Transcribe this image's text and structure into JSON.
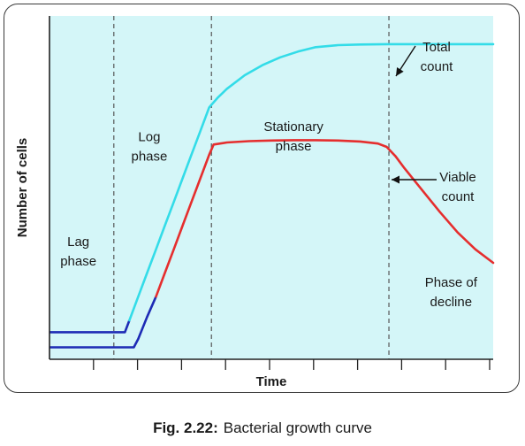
{
  "caption": {
    "figure_label": "Fig. 2.22:",
    "text": "Bacterial growth curve"
  },
  "colors": {
    "plot_background": "#d4f6f8",
    "total_count": "#33dce8",
    "viable_count": "#e52e2e",
    "lag_segment": "#1d2bb5",
    "divider": "#555555",
    "axis": "#222222"
  },
  "chart_data": {
    "type": "line",
    "title": "",
    "xlabel": "Time",
    "ylabel": "Number of cells",
    "xlim": [
      0,
      100
    ],
    "ylim": [
      0,
      100
    ],
    "grid": false,
    "phase_boundaries": [
      14.5,
      36.5,
      76.5
    ],
    "phases": [
      {
        "label_lines": [
          "Lag",
          "phase"
        ],
        "x": 6.5,
        "y": 33
      },
      {
        "label_lines": [
          "Log",
          "phase"
        ],
        "x": 22.5,
        "y": 64
      },
      {
        "label_lines": [
          "Stationary",
          "phase"
        ],
        "x": 55,
        "y": 67
      },
      {
        "label_lines": [
          "Phase of",
          "decline"
        ],
        "x": 90.5,
        "y": 21
      }
    ],
    "series": [
      {
        "name": "Total count",
        "label_lines": [
          "Total",
          "count"
        ],
        "color": "#33dce8",
        "lag_color": "#1d2bb5",
        "lag_end": 18,
        "x": [
          0,
          17,
          18,
          20,
          22,
          24,
          26,
          28,
          30,
          32,
          34,
          36,
          38,
          40,
          44,
          48,
          52,
          56,
          60,
          65,
          70,
          76,
          80,
          90,
          100
        ],
        "y": [
          7.5,
          7.5,
          11,
          18,
          25,
          32,
          39,
          46,
          53,
          60,
          67,
          74,
          77,
          79.5,
          83.5,
          86.5,
          88.8,
          90.5,
          91.8,
          92.4,
          92.6,
          92.7,
          92.7,
          92.7,
          92.7
        ]
      },
      {
        "name": "Viable count",
        "label_lines": [
          "Viable",
          "count"
        ],
        "color": "#e52e2e",
        "lag_color": "#1d2bb5",
        "lag_end": 24,
        "x": [
          0,
          19,
          20,
          22,
          24,
          26,
          28,
          30,
          32,
          34,
          36,
          37,
          40,
          45,
          50,
          55,
          60,
          65,
          70,
          74,
          76,
          78,
          80,
          84,
          88,
          92,
          96,
          100
        ],
        "y": [
          3,
          3,
          5.5,
          12,
          18,
          25,
          32,
          39,
          46,
          53,
          60,
          63,
          63.6,
          64,
          64.2,
          64.3,
          64.3,
          64.2,
          63.9,
          63.3,
          62.3,
          59.5,
          56,
          49.5,
          43,
          37,
          32,
          28
        ]
      }
    ],
    "annotations": [
      {
        "series": "Total count",
        "point": [
          76.5,
          92.7
        ]
      },
      {
        "series": "Viable count",
        "point": [
          77,
          61.5
        ]
      }
    ]
  }
}
